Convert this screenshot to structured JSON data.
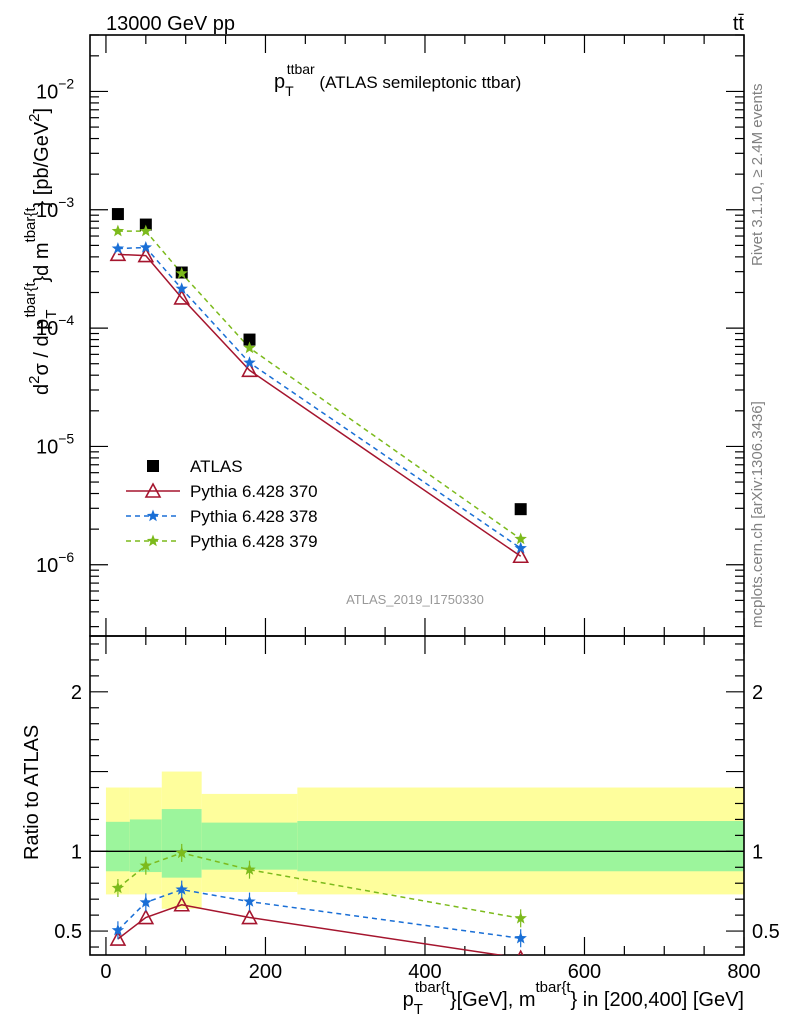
{
  "header": {
    "energy_label": "13000 GeV pp",
    "process_label": "tt̄"
  },
  "side_text": {
    "rivet": "Rivet 3.1.10, ≥ 2.4M events",
    "mcplots": "mcplots.cern.ch [arXiv:1306.3436]"
  },
  "plot_title": {
    "main": "p",
    "sub": "T",
    "sup": "ttbar",
    "rest": " (ATLAS semileptonic ttbar)"
  },
  "watermark": "ATLAS_2019_I1750330",
  "colors": {
    "data": "#000000",
    "p370": "#a5152e",
    "p378": "#1a6fd6",
    "p379": "#7cba1c",
    "band_inner": "#9cf59c",
    "band_outer": "#fefe9c"
  },
  "chart_data": [
    {
      "type": "line",
      "panel": "main",
      "y_scale": "log",
      "ylim": [
        2.5e-07,
        0.03
      ],
      "xlim": [
        -20,
        800
      ],
      "ylabel_parts": {
        "a": "d",
        "b": "2",
        "c": "σ / d p",
        "d": "T",
        "e": "tbar{t",
        "f": "}d m",
        "g": "tbar{t",
        "h": "} [pb/GeV",
        "i": "2",
        "j": "]"
      },
      "y_ticks": [
        {
          "value": 1e-06,
          "base": "10",
          "exp": "−6"
        },
        {
          "value": 1e-05,
          "base": "10",
          "exp": "−5"
        },
        {
          "value": 0.0001,
          "base": "10",
          "exp": "−4"
        },
        {
          "value": 0.001,
          "base": "10",
          "exp": "−3"
        },
        {
          "value": 0.01,
          "base": "10",
          "exp": "−2"
        }
      ],
      "legend_position": "lower-left",
      "series": [
        {
          "name": "ATLAS",
          "marker": "square",
          "x": [
            15,
            50,
            95,
            180,
            520
          ],
          "values": [
            0.00092,
            0.00075,
            0.000295,
            8e-05,
            2.95e-06
          ]
        },
        {
          "name": "Pythia 6.428 370",
          "marker": "triangle",
          "line": "solid",
          "x": [
            15,
            50,
            95,
            180,
            520
          ],
          "values": [
            0.00042,
            0.00041,
            0.00018,
            4.4e-05,
            1.18e-06
          ]
        },
        {
          "name": "Pythia 6.428 378",
          "marker": "star",
          "line": "dashed",
          "x": [
            15,
            50,
            95,
            180,
            520
          ],
          "values": [
            0.00047,
            0.00048,
            0.000215,
            5.1e-05,
            1.38e-06
          ]
        },
        {
          "name": "Pythia 6.428 379",
          "marker": "star",
          "line": "dashed",
          "x": [
            15,
            50,
            95,
            180,
            520
          ],
          "values": [
            0.00066,
            0.00066,
            0.00029,
            6.8e-05,
            1.65e-06
          ]
        }
      ]
    },
    {
      "type": "line",
      "panel": "ratio",
      "ylabel": "Ratio to ATLAS",
      "ylim": [
        0.35,
        2.35
      ],
      "xlim": [
        -20,
        800
      ],
      "y_ticks": [
        {
          "value": 0.5,
          "label": "0.5"
        },
        {
          "value": 1,
          "label": "1"
        },
        {
          "value": 2,
          "label": "2"
        }
      ],
      "x_ticks": [
        {
          "value": 0,
          "label": "0"
        },
        {
          "value": 200,
          "label": "200"
        },
        {
          "value": 400,
          "label": "400"
        },
        {
          "value": 600,
          "label": "600"
        },
        {
          "value": 800,
          "label": "800"
        }
      ],
      "xlabel_parts": {
        "a": "p",
        "b": "T",
        "c": "tbar{t",
        "d": "}[GeV], m",
        "e": "tbar{t",
        "f": "} in [200,400] [GeV]"
      },
      "bands": [
        {
          "x0": 0,
          "x1": 30,
          "inner": [
            0.875,
            1.185
          ],
          "outer": [
            0.73,
            1.4
          ]
        },
        {
          "x0": 30,
          "x1": 70,
          "inner": [
            0.87,
            1.2
          ],
          "outer": [
            0.73,
            1.4
          ]
        },
        {
          "x0": 70,
          "x1": 120,
          "inner": [
            0.835,
            1.265
          ],
          "outer": [
            0.64,
            1.5
          ]
        },
        {
          "x0": 120,
          "x1": 240,
          "inner": [
            0.885,
            1.18
          ],
          "outer": [
            0.745,
            1.36
          ]
        },
        {
          "x0": 240,
          "x1": 800,
          "inner": [
            0.875,
            1.19
          ],
          "outer": [
            0.73,
            1.4
          ]
        }
      ],
      "series": [
        {
          "name": "Pythia 6.428 370",
          "x": [
            15,
            50,
            95,
            180,
            520
          ],
          "values": [
            0.45,
            0.585,
            0.665,
            0.585,
            0.33
          ]
        },
        {
          "name": "Pythia 6.428 378",
          "x": [
            15,
            50,
            95,
            180,
            520
          ],
          "values": [
            0.505,
            0.68,
            0.76,
            0.685,
            0.455
          ]
        },
        {
          "name": "Pythia 6.428 379",
          "x": [
            15,
            50,
            95,
            180,
            520
          ],
          "values": [
            0.77,
            0.91,
            0.99,
            0.885,
            0.58
          ]
        }
      ]
    }
  ]
}
